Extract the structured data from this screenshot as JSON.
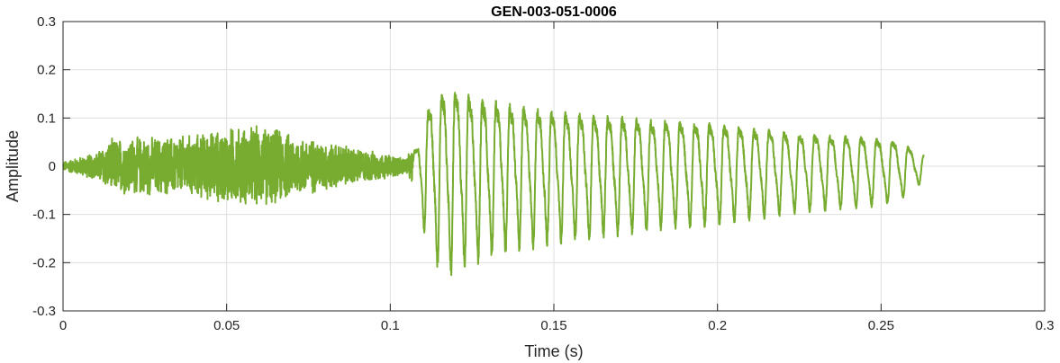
{
  "chart_data": {
    "type": "line",
    "title": "GEN-003-051-0006",
    "xlabel": "Time (s)",
    "ylabel": "Amplitude",
    "xlim": [
      0,
      0.3
    ],
    "ylim": [
      -0.3,
      0.3
    ],
    "x_ticks": [
      0,
      0.05,
      0.1,
      0.15,
      0.2,
      0.25,
      0.3
    ],
    "x_tick_labels": [
      "0",
      "0.05",
      "0.1",
      "0.15",
      "0.2",
      "0.25",
      "0.3"
    ],
    "y_ticks": [
      -0.3,
      -0.2,
      -0.1,
      0,
      0.1,
      0.2,
      0.3
    ],
    "y_tick_labels": [
      "-0.3",
      "-0.2",
      "-0.1",
      "0",
      "0.1",
      "0.2",
      "0.3"
    ],
    "grid": true,
    "series": [
      {
        "color": "#77ac30",
        "duration": 0.263,
        "envelope": [
          [
            0.0,
            0.01
          ],
          [
            0.005,
            0.02
          ],
          [
            0.01,
            0.03
          ],
          [
            0.015,
            0.06
          ],
          [
            0.02,
            0.065
          ],
          [
            0.03,
            0.065
          ],
          [
            0.04,
            0.07
          ],
          [
            0.05,
            0.085
          ],
          [
            0.06,
            0.09
          ],
          [
            0.065,
            0.085
          ],
          [
            0.07,
            0.07
          ],
          [
            0.08,
            0.055
          ],
          [
            0.09,
            0.04
          ],
          [
            0.1,
            0.025
          ],
          [
            0.105,
            0.02
          ],
          [
            0.108,
            0.05
          ],
          [
            0.11,
            0.12
          ],
          [
            0.113,
            0.19
          ],
          [
            0.118,
            0.215
          ],
          [
            0.125,
            0.19
          ],
          [
            0.135,
            0.17
          ],
          [
            0.15,
            0.15
          ],
          [
            0.175,
            0.13
          ],
          [
            0.2,
            0.115
          ],
          [
            0.225,
            0.09
          ],
          [
            0.245,
            0.08
          ],
          [
            0.255,
            0.07
          ],
          [
            0.263,
            0.03
          ]
        ]
      }
    ]
  }
}
